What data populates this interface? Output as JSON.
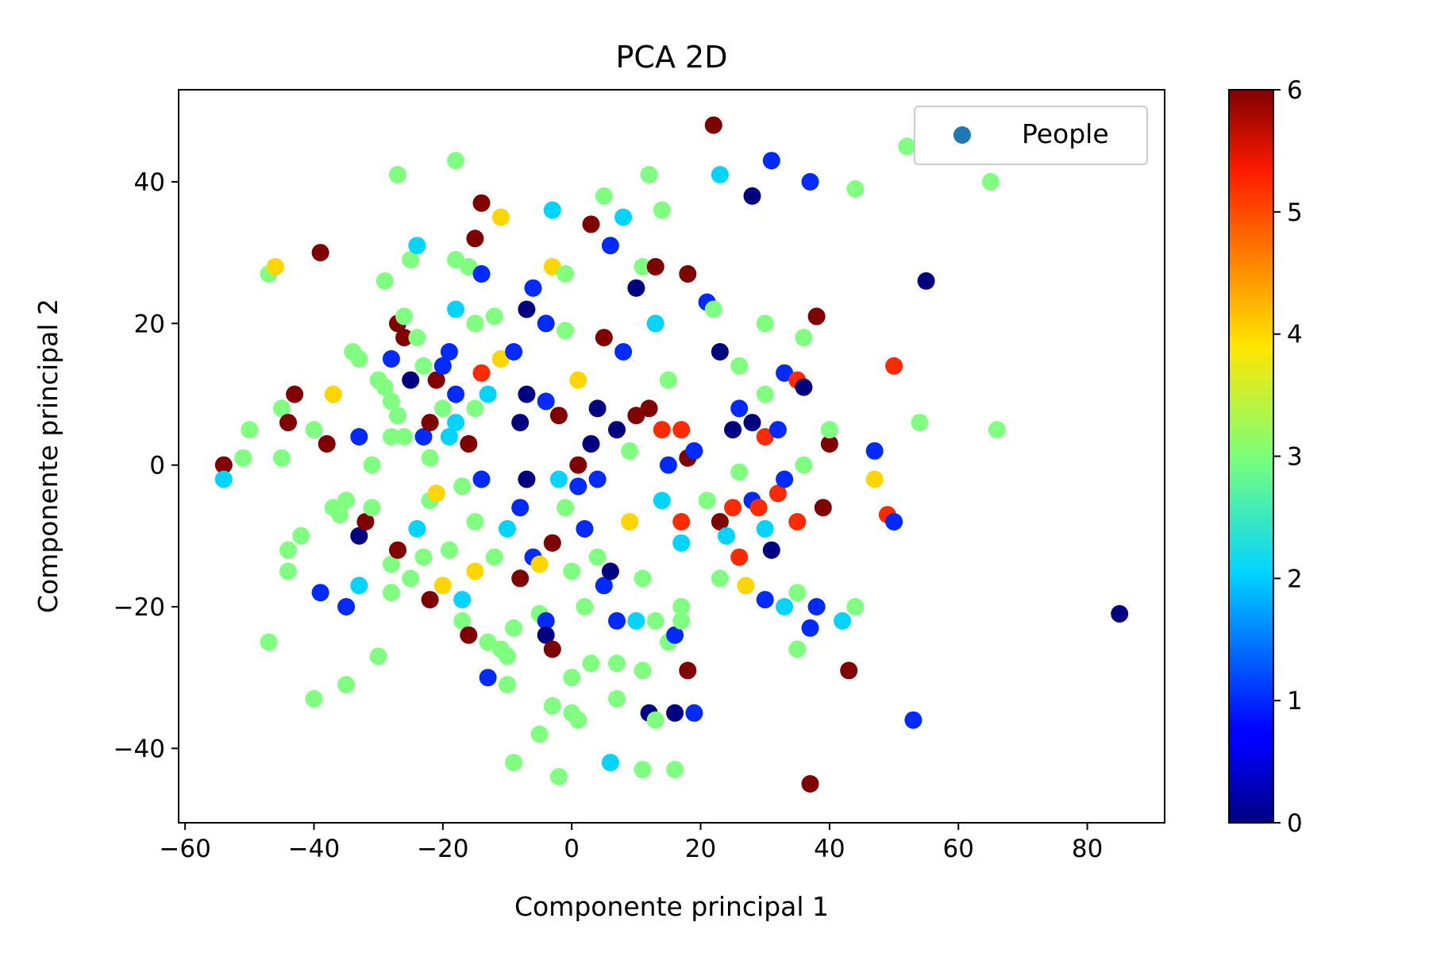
{
  "chart_data": {
    "type": "scatter",
    "title": "PCA 2D",
    "xlabel": "Componente principal 1",
    "ylabel": "Componente principal 2",
    "xlim": [
      -61,
      92
    ],
    "ylim": [
      -50.5,
      53
    ],
    "x_ticks": [
      -60,
      -40,
      -20,
      0,
      20,
      40,
      60,
      80
    ],
    "y_ticks": [
      -40,
      -20,
      0,
      20,
      40
    ],
    "grid": false,
    "legend": {
      "position": "top-right",
      "entries": [
        "People"
      ],
      "marker_color": "#1f77b4"
    },
    "colorbar": {
      "colormap": "jet",
      "min": 0,
      "max": 6,
      "ticks": [
        0,
        1,
        2,
        3,
        4,
        5,
        6
      ]
    },
    "series": [
      {
        "name": "People",
        "points": [
          [
            -54,
            0,
            6
          ],
          [
            -54,
            -2,
            2
          ],
          [
            -47,
            27,
            3
          ],
          [
            -46,
            28,
            4
          ],
          [
            -47,
            -25,
            3
          ],
          [
            -50,
            5,
            3
          ],
          [
            -51,
            1,
            3
          ],
          [
            -45,
            8,
            3
          ],
          [
            -45,
            1,
            3
          ],
          [
            -44,
            6,
            6
          ],
          [
            -43,
            10,
            6
          ],
          [
            -44,
            -12,
            3
          ],
          [
            -44,
            -15,
            3
          ],
          [
            -42,
            -10,
            3
          ],
          [
            -40,
            5,
            3
          ],
          [
            -40,
            -33,
            3
          ],
          [
            -39,
            -18,
            1
          ],
          [
            -39,
            30,
            6
          ],
          [
            -38,
            3,
            6
          ],
          [
            -37,
            10,
            4
          ],
          [
            -37,
            -6,
            3
          ],
          [
            -35,
            -20,
            1
          ],
          [
            -35,
            -31,
            3
          ],
          [
            -36,
            -7,
            3
          ],
          [
            -35,
            -5,
            3
          ],
          [
            -34,
            16,
            3
          ],
          [
            -33,
            15,
            3
          ],
          [
            -33,
            4,
            1
          ],
          [
            -33,
            -10,
            0
          ],
          [
            -33,
            -17,
            2
          ],
          [
            -32,
            -8,
            6
          ],
          [
            -31,
            -6,
            3
          ],
          [
            -31,
            0,
            3
          ],
          [
            -30,
            12,
            3
          ],
          [
            -30,
            -27,
            3
          ],
          [
            -29,
            26,
            3
          ],
          [
            -29,
            11,
            3
          ],
          [
            -28,
            15,
            1
          ],
          [
            -28,
            9,
            3
          ],
          [
            -28,
            4,
            3
          ],
          [
            -28,
            -14,
            3
          ],
          [
            -28,
            -18,
            3
          ],
          [
            -27,
            41,
            3
          ],
          [
            -27,
            20,
            6
          ],
          [
            -27,
            7,
            3
          ],
          [
            -27,
            -12,
            6
          ],
          [
            -26,
            21,
            3
          ],
          [
            -26,
            18,
            6
          ],
          [
            -26,
            4,
            3
          ],
          [
            -25,
            12,
            0
          ],
          [
            -25,
            -16,
            3
          ],
          [
            -25,
            29,
            3
          ],
          [
            -24,
            -9,
            2
          ],
          [
            -24,
            31,
            2
          ],
          [
            -24,
            18,
            3
          ],
          [
            -23,
            14,
            3
          ],
          [
            -23,
            4,
            1
          ],
          [
            -23,
            -13,
            3
          ],
          [
            -22,
            6,
            6
          ],
          [
            -22,
            1,
            3
          ],
          [
            -22,
            -5,
            3
          ],
          [
            -22,
            -19,
            6
          ],
          [
            -21,
            -4,
            4
          ],
          [
            -21,
            12,
            6
          ],
          [
            -20,
            8,
            3
          ],
          [
            -20,
            -17,
            4
          ],
          [
            -20,
            14,
            1
          ],
          [
            -19,
            16,
            1
          ],
          [
            -19,
            4,
            2
          ],
          [
            -19,
            -12,
            3
          ],
          [
            -18,
            43,
            3
          ],
          [
            -18,
            29,
            3
          ],
          [
            -18,
            22,
            2
          ],
          [
            -18,
            10,
            1
          ],
          [
            -18,
            6,
            2
          ],
          [
            -17,
            -3,
            3
          ],
          [
            -17,
            -19,
            2
          ],
          [
            -17,
            -22,
            3
          ],
          [
            -16,
            -24,
            6
          ],
          [
            -16,
            28,
            3
          ],
          [
            -16,
            3,
            6
          ],
          [
            -15,
            32,
            6
          ],
          [
            -15,
            20,
            3
          ],
          [
            -15,
            8,
            3
          ],
          [
            -15,
            -8,
            3
          ],
          [
            -15,
            -15,
            4
          ],
          [
            -14,
            37,
            6
          ],
          [
            -14,
            27,
            1
          ],
          [
            -14,
            13,
            5
          ],
          [
            -14,
            -2,
            1
          ],
          [
            -13,
            -30,
            1
          ],
          [
            -13,
            -25,
            3
          ],
          [
            -13,
            10,
            2
          ],
          [
            -12,
            21,
            3
          ],
          [
            -12,
            -13,
            3
          ],
          [
            -11,
            35,
            4
          ],
          [
            -11,
            15,
            4
          ],
          [
            -11,
            -26,
            3
          ],
          [
            -10,
            -27,
            3
          ],
          [
            -10,
            -9,
            2
          ],
          [
            -10,
            -31,
            3
          ],
          [
            -9,
            -23,
            3
          ],
          [
            -9,
            16,
            1
          ],
          [
            -9,
            -42,
            3
          ],
          [
            -8,
            -16,
            6
          ],
          [
            -8,
            -6,
            1
          ],
          [
            -8,
            6,
            0
          ],
          [
            -7,
            22,
            0
          ],
          [
            -7,
            10,
            0
          ],
          [
            -7,
            -2,
            0
          ],
          [
            -6,
            25,
            1
          ],
          [
            -6,
            -13,
            1
          ],
          [
            -5,
            -21,
            3
          ],
          [
            -5,
            -38,
            3
          ],
          [
            -5,
            -14,
            4
          ],
          [
            -4,
            20,
            1
          ],
          [
            -4,
            -22,
            1
          ],
          [
            -4,
            -24,
            0
          ],
          [
            -4,
            9,
            1
          ],
          [
            -3,
            36,
            2
          ],
          [
            -3,
            28,
            4
          ],
          [
            -3,
            -11,
            6
          ],
          [
            -3,
            -34,
            3
          ],
          [
            -3,
            -26,
            6
          ],
          [
            -2,
            -44,
            3
          ],
          [
            -2,
            -2,
            2
          ],
          [
            -2,
            7,
            6
          ],
          [
            -1,
            27,
            3
          ],
          [
            -1,
            19,
            3
          ],
          [
            -1,
            -6,
            3
          ],
          [
            0,
            -30,
            3
          ],
          [
            0,
            -15,
            3
          ],
          [
            0,
            -35,
            3
          ],
          [
            1,
            12,
            4
          ],
          [
            1,
            -3,
            1
          ],
          [
            1,
            0,
            6
          ],
          [
            1,
            -36,
            3
          ],
          [
            2,
            -20,
            3
          ],
          [
            2,
            -9,
            1
          ],
          [
            3,
            -28,
            3
          ],
          [
            3,
            3,
            0
          ],
          [
            3,
            34,
            6
          ],
          [
            4,
            -13,
            3
          ],
          [
            4,
            8,
            0
          ],
          [
            4,
            -2,
            1
          ],
          [
            5,
            -17,
            1
          ],
          [
            5,
            18,
            6
          ],
          [
            5,
            38,
            3
          ],
          [
            6,
            31,
            1
          ],
          [
            6,
            -15,
            0
          ],
          [
            6,
            -42,
            2
          ],
          [
            7,
            -33,
            3
          ],
          [
            7,
            -22,
            1
          ],
          [
            7,
            5,
            0
          ],
          [
            7,
            -28,
            3
          ],
          [
            8,
            35,
            2
          ],
          [
            8,
            16,
            1
          ],
          [
            9,
            -8,
            4
          ],
          [
            9,
            2,
            3
          ],
          [
            10,
            -22,
            2
          ],
          [
            10,
            25,
            0
          ],
          [
            10,
            7,
            6
          ],
          [
            11,
            28,
            3
          ],
          [
            11,
            -43,
            3
          ],
          [
            11,
            -29,
            3
          ],
          [
            11,
            -16,
            3
          ],
          [
            12,
            -35,
            0
          ],
          [
            12,
            41,
            3
          ],
          [
            12,
            8,
            6
          ],
          [
            13,
            -36,
            3
          ],
          [
            13,
            28,
            6
          ],
          [
            13,
            20,
            2
          ],
          [
            13,
            -22,
            3
          ],
          [
            14,
            36,
            3
          ],
          [
            14,
            -5,
            2
          ],
          [
            14,
            5,
            5
          ],
          [
            15,
            -25,
            3
          ],
          [
            15,
            12,
            3
          ],
          [
            15,
            0,
            1
          ],
          [
            16,
            -43,
            3
          ],
          [
            16,
            -24,
            1
          ],
          [
            16,
            -35,
            0
          ],
          [
            17,
            -8,
            5
          ],
          [
            17,
            5,
            5
          ],
          [
            17,
            -11,
            2
          ],
          [
            17,
            -20,
            3
          ],
          [
            17,
            -22,
            3
          ],
          [
            18,
            -29,
            6
          ],
          [
            18,
            27,
            6
          ],
          [
            18,
            1,
            6
          ],
          [
            19,
            2,
            1
          ],
          [
            19,
            -35,
            1
          ],
          [
            21,
            -5,
            3
          ],
          [
            21,
            23,
            1
          ],
          [
            22,
            48,
            6
          ],
          [
            22,
            22,
            3
          ],
          [
            23,
            -8,
            6
          ],
          [
            23,
            41,
            2
          ],
          [
            23,
            16,
            0
          ],
          [
            23,
            -16,
            3
          ],
          [
            24,
            -10,
            2
          ],
          [
            25,
            -6,
            5
          ],
          [
            25,
            5,
            0
          ],
          [
            26,
            8,
            1
          ],
          [
            26,
            14,
            3
          ],
          [
            26,
            -13,
            5
          ],
          [
            26,
            -1,
            3
          ],
          [
            27,
            -17,
            4
          ],
          [
            28,
            38,
            0
          ],
          [
            28,
            -5,
            1
          ],
          [
            28,
            6,
            0
          ],
          [
            29,
            -6,
            5
          ],
          [
            30,
            20,
            3
          ],
          [
            30,
            -19,
            1
          ],
          [
            30,
            10,
            3
          ],
          [
            30,
            -9,
            2
          ],
          [
            30,
            4,
            5
          ],
          [
            31,
            43,
            1
          ],
          [
            31,
            -12,
            0
          ],
          [
            32,
            -4,
            5
          ],
          [
            32,
            5,
            1
          ],
          [
            33,
            -2,
            1
          ],
          [
            33,
            13,
            1
          ],
          [
            33,
            -20,
            2
          ],
          [
            35,
            -8,
            5
          ],
          [
            35,
            -26,
            3
          ],
          [
            35,
            -18,
            3
          ],
          [
            35,
            12,
            5
          ],
          [
            36,
            0,
            3
          ],
          [
            36,
            11,
            0
          ],
          [
            36,
            18,
            3
          ],
          [
            37,
            40,
            1
          ],
          [
            37,
            -23,
            1
          ],
          [
            37,
            -45,
            6
          ],
          [
            38,
            -20,
            1
          ],
          [
            38,
            21,
            6
          ],
          [
            39,
            -6,
            6
          ],
          [
            40,
            3,
            6
          ],
          [
            40,
            5,
            3
          ],
          [
            42,
            -22,
            2
          ],
          [
            43,
            -29,
            6
          ],
          [
            44,
            -20,
            3
          ],
          [
            44,
            39,
            3
          ],
          [
            47,
            2,
            1
          ],
          [
            47,
            -2,
            4
          ],
          [
            49,
            -7,
            5
          ],
          [
            50,
            -8,
            1
          ],
          [
            50,
            14,
            5
          ],
          [
            52,
            45,
            3
          ],
          [
            53,
            -36,
            1
          ],
          [
            54,
            6,
            3
          ],
          [
            55,
            26,
            0
          ],
          [
            65,
            40,
            3
          ],
          [
            66,
            5,
            3
          ],
          [
            85,
            -21,
            0
          ]
        ]
      }
    ]
  }
}
